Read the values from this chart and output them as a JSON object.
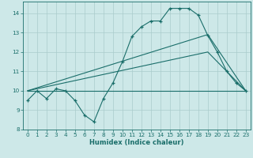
{
  "title": "",
  "xlabel": "Humidex (Indice chaleur)",
  "ylabel": "",
  "bg_color": "#cde8e8",
  "line_color": "#1a6e6a",
  "grid_color": "#aacccc",
  "xlim": [
    -0.5,
    23.5
  ],
  "ylim": [
    8,
    14.6
  ],
  "yticks": [
    8,
    9,
    10,
    11,
    12,
    13,
    14
  ],
  "xticks": [
    0,
    1,
    2,
    3,
    4,
    5,
    6,
    7,
    8,
    9,
    10,
    11,
    12,
    13,
    14,
    15,
    16,
    17,
    18,
    19,
    20,
    21,
    22,
    23
  ],
  "curve1_x": [
    0,
    1,
    2,
    3,
    4,
    5,
    6,
    7,
    8,
    9,
    10,
    11,
    12,
    13,
    14,
    15,
    16,
    17,
    18,
    19,
    20,
    21,
    22,
    23
  ],
  "curve1_y": [
    9.5,
    10.0,
    9.6,
    10.1,
    10.0,
    9.5,
    8.75,
    8.4,
    9.6,
    10.4,
    11.5,
    12.8,
    13.3,
    13.6,
    13.6,
    14.25,
    14.25,
    14.25,
    13.9,
    12.85,
    12.0,
    11.0,
    10.4,
    10.0
  ],
  "curve2_x": [
    0,
    23
  ],
  "curve2_y": [
    10.0,
    10.0
  ],
  "curve3_x": [
    0,
    19,
    23
  ],
  "curve3_y": [
    10.0,
    12.9,
    10.0
  ],
  "curve4_x": [
    0,
    19,
    23
  ],
  "curve4_y": [
    10.0,
    12.0,
    10.0
  ],
  "label_fontsize": 6.0,
  "tick_fontsize": 5.2
}
